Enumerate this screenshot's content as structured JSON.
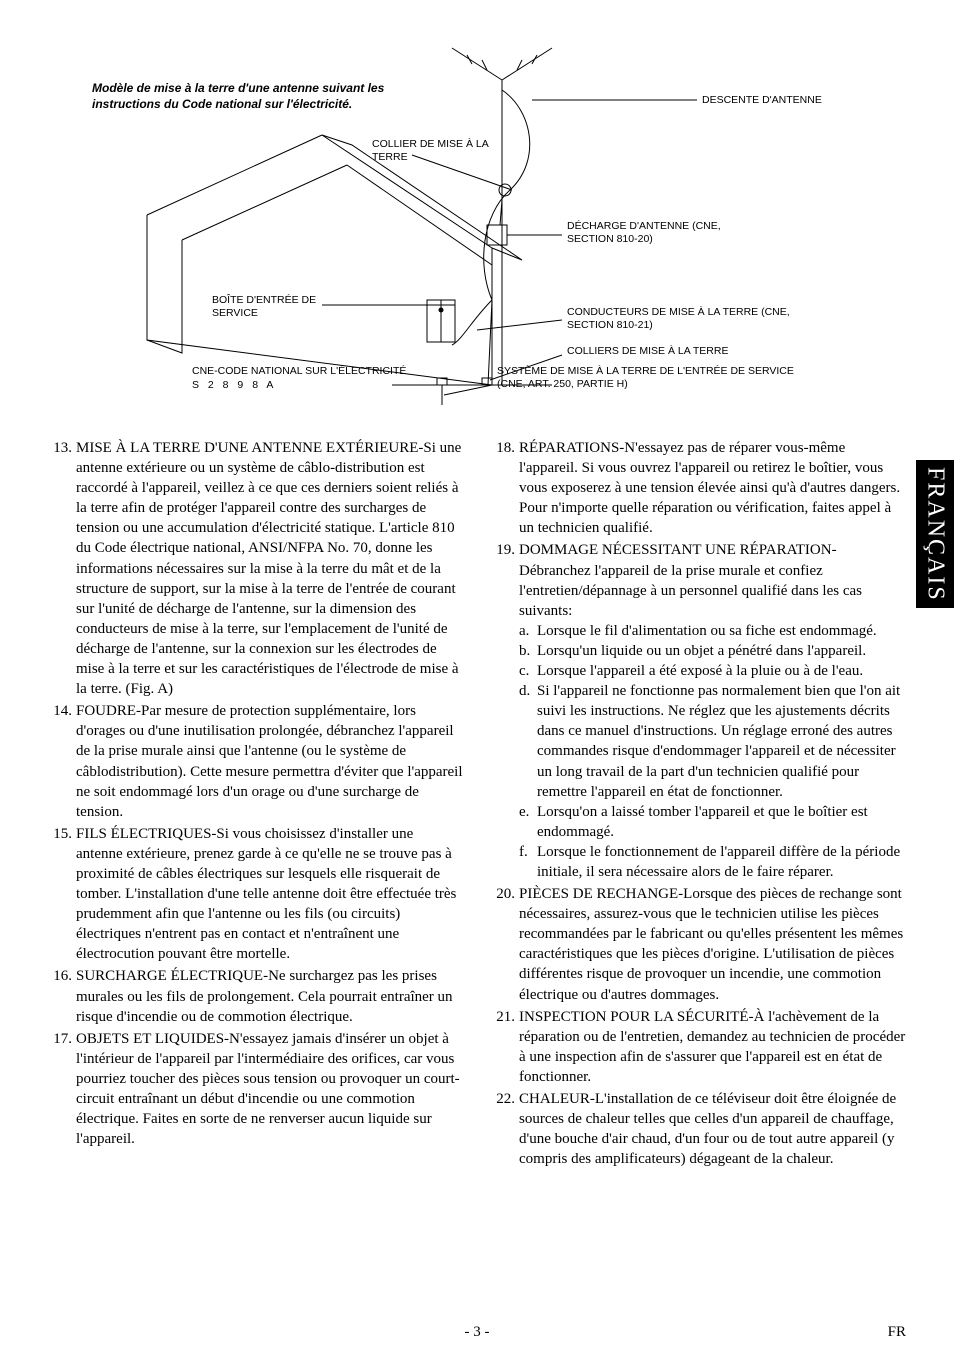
{
  "figure": {
    "caption": "Modèle de mise à la terre d'une antenne suivant les instructions du Code national sur l'électricité.",
    "labels": {
      "descente": "DESCENTE D'ANTENNE",
      "collier": "COLLIER DE MISE À LA TERRE",
      "decharge": "DÉCHARGE D'ANTENNE (CNE, SECTION 810-20)",
      "boite": "BOÎTE D'ENTRÉE DE SERVICE",
      "conducteurs": "CONDUCTEURS DE MISE À LA TERRE (CNE, SECTION 810-21)",
      "colliers_terre": "COLLIERS DE MISE À LA TERRE",
      "cne_code": "CNE-CODE NATIONAL SUR L'ÉLECTRICITÉ",
      "serial": "S 2 8 9 8 A",
      "systeme": "SYSTÈME DE MISE À LA TERRE DE L'ENTRÉE DE SERVICE (CNE, ART. 250, PARTIE H)"
    },
    "style": {
      "stroke": "#000000",
      "stroke_width": 1,
      "label_font": "Arial",
      "label_fontsize": 10.5,
      "caption_fontsize": 12,
      "caption_style": "italic bold"
    }
  },
  "list": [
    {
      "n": "13.",
      "title": "MISE À LA TERRE D'UNE ANTENNE EXTÉRIEURE-",
      "text": "Si une antenne extérieure ou un système de câblo-distribution est raccordé à l'appareil, veillez à ce que ces derniers soient reliés à la terre afin de protéger l'appareil contre des surcharges de tension ou une accumulation d'électricité statique. L'article 810 du Code électrique national, ANSI/NFPA No. 70, donne les informations nécessaires sur la mise à la terre du mât et de la structure de support, sur la mise à la terre de l'entrée de courant sur l'unité de décharge de l'antenne, sur la dimension des conducteurs de mise à la terre, sur l'emplacement de l'unité de décharge de l'antenne, sur la connexion sur les électrodes de mise à la terre et sur les caractéristiques de l'électrode de mise à la terre. (Fig. A)"
    },
    {
      "n": "14.",
      "title": "FOUDRE-",
      "text": "Par mesure de protection supplémentaire, lors d'orages ou d'une inutilisation prolongée, débranchez l'appareil de la prise murale ainsi que l'antenne (ou le système de câblodistribution). Cette mesure permettra d'éviter que l'appareil ne soit endommagé lors d'un orage ou d'une surcharge de tension."
    },
    {
      "n": "15.",
      "title": "FILS ÉLECTRIQUES-",
      "text": "Si vous choisissez d'installer une antenne extérieure, prenez garde à ce qu'elle ne se trouve pas à proximité de câbles électriques sur lesquels elle risquerait de tomber. L'installation d'une telle antenne doit être effectuée très prudemment afin que l'antenne ou les fils (ou circuits) électriques n'entrent pas en contact et n'entraînent une électrocution pouvant être mortelle."
    },
    {
      "n": "16.",
      "title": "SURCHARGE ÉLECTRIQUE-",
      "text": "Ne surchargez pas les prises murales ou les fils de prolongement. Cela pourrait entraîner un risque d'incendie ou de commotion électrique."
    },
    {
      "n": "17.",
      "title": "OBJETS ET LIQUIDES-",
      "text": "N'essayez jamais d'insérer un objet à l'intérieur de l'appareil par l'intermédiaire des orifices, car vous pourriez toucher des pièces sous tension ou provoquer un court-circuit entraînant un début d'incendie ou une commotion électrique. Faites en sorte de ne renverser aucun liquide sur l'appareil."
    },
    {
      "n": "18.",
      "title": "RÉPARATIONS-",
      "text": "N'essayez pas de réparer vous-même l'appareil. Si vous ouvrez l'appareil ou retirez le boîtier, vous vous exposerez à une tension élevée ainsi qu'à d'autres dangers. Pour n'importe quelle réparation ou vérification, faites appel à un technicien qualifié."
    },
    {
      "n": "19.",
      "title": "DOMMAGE NÉCESSITANT UNE RÉPARATION-",
      "text": "Débranchez l'appareil de la prise murale et confiez l'entretien/dépannage à un personnel qualifié dans les cas suivants:",
      "sub": [
        {
          "l": "a.",
          "t": "Lorsque le fil d'alimentation ou sa fiche est endommagé."
        },
        {
          "l": "b.",
          "t": "Lorsqu'un liquide ou un objet a pénétré dans l'appareil."
        },
        {
          "l": "c.",
          "t": "Lorsque l'appareil a été exposé à la pluie ou à de l'eau."
        },
        {
          "l": "d.",
          "t": "Si l'appareil ne fonctionne pas normalement bien que l'on ait suivi les instructions. Ne réglez que les ajustements décrits dans ce manuel d'instructions. Un réglage erroné des autres commandes risque d'endommager l'appareil et de nécessiter un long travail de la part d'un technicien qualifié pour remettre l'appareil en état de fonctionner."
        },
        {
          "l": "e.",
          "t": "Lorsqu'on a laissé tomber l'appareil et que le boîtier est endommagé."
        },
        {
          "l": "f.",
          "t": "Lorsque le fonctionnement de l'appareil diffère de la période initiale, il sera nécessaire alors de le faire réparer."
        }
      ]
    },
    {
      "n": "20.",
      "title": "PIÈCES DE RECHANGE-",
      "text": "Lorsque des pièces de rechange sont nécessaires, assurez-vous que le technicien utilise les pièces recommandées par le fabricant ou qu'elles présentent les mêmes caractéristiques que les pièces d'origine. L'utilisation de pièces différentes risque de provoquer un incendie, une commotion électrique ou d'autres dommages."
    },
    {
      "n": "21.",
      "title": "INSPECTION POUR LA SÉCURITÉ-",
      "text": "À l'achèvement de la réparation ou de l'entretien, demandez au technicien de procéder à une inspection afin de s'assurer que l'appareil est en état de fonctionner."
    },
    {
      "n": "22.",
      "title": "CHALEUR-",
      "text": "L'installation de ce téléviseur doit être éloignée de sources de chaleur telles que celles d'un appareil de chauffage, d'une bouche d'air chaud, d'un four ou de tout autre appareil (y compris des amplificateurs) dégageant de la chaleur."
    }
  ],
  "sideTab": "FRANÇAIS",
  "footer": {
    "page": "- 3 -",
    "lang": "FR"
  }
}
